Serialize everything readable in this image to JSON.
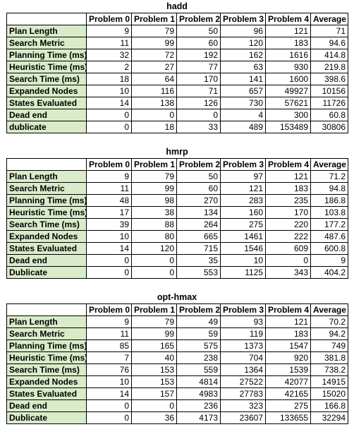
{
  "tables": [
    {
      "title": "hadd",
      "columns": [
        "Problem 0",
        "Problem 1",
        "Problem 2",
        "Problem 3",
        "Problem 4",
        "Average"
      ],
      "rows": [
        {
          "label": "Plan Length",
          "values": [
            "9",
            "79",
            "50",
            "96",
            "121",
            "71"
          ]
        },
        {
          "label": "Search Metric",
          "values": [
            "11",
            "99",
            "60",
            "120",
            "183",
            "94.6"
          ]
        },
        {
          "label": "Planning Time (ms)",
          "values": [
            "32",
            "72",
            "192",
            "162",
            "1616",
            "414.8"
          ]
        },
        {
          "label": "Heuristic Time (ms)",
          "values": [
            "2",
            "27",
            "77",
            "63",
            "930",
            "219.8"
          ]
        },
        {
          "label": "Search Time (ms)",
          "values": [
            "18",
            "64",
            "170",
            "141",
            "1600",
            "398.6"
          ]
        },
        {
          "label": "Expanded Nodes",
          "values": [
            "10",
            "116",
            "71",
            "657",
            "49927",
            "10156"
          ]
        },
        {
          "label": "States Evaluated",
          "values": [
            "14",
            "138",
            "126",
            "730",
            "57621",
            "11726"
          ]
        },
        {
          "label": "Dead end",
          "values": [
            "0",
            "0",
            "0",
            "4",
            "300",
            "60.8"
          ]
        },
        {
          "label": "dublicate",
          "values": [
            "0",
            "18",
            "33",
            "489",
            "153489",
            "30806"
          ]
        }
      ]
    },
    {
      "title": "hmrp",
      "columns": [
        "Problem 0",
        "Problem 1",
        "Problem 2",
        "Problem 3",
        "Problem 4",
        "Average"
      ],
      "rows": [
        {
          "label": "Plan Length",
          "values": [
            "9",
            "79",
            "50",
            "97",
            "121",
            "71.2"
          ]
        },
        {
          "label": "Search Metric",
          "values": [
            "11",
            "99",
            "60",
            "121",
            "183",
            "94.8"
          ]
        },
        {
          "label": "Planning Time (ms)",
          "values": [
            "48",
            "98",
            "270",
            "283",
            "235",
            "186.8"
          ]
        },
        {
          "label": "Heuristic Time (ms)",
          "values": [
            "17",
            "38",
            "134",
            "160",
            "170",
            "103.8"
          ]
        },
        {
          "label": "Search Time (ms)",
          "values": [
            "39",
            "88",
            "264",
            "275",
            "220",
            "177.2"
          ]
        },
        {
          "label": "Expanded Nodes",
          "values": [
            "10",
            "80",
            "665",
            "1461",
            "222",
            "487.6"
          ]
        },
        {
          "label": "States Evaluated",
          "values": [
            "14",
            "120",
            "715",
            "1546",
            "609",
            "600.8"
          ]
        },
        {
          "label": "Dead end",
          "values": [
            "0",
            "0",
            "35",
            "10",
            "0",
            "9"
          ]
        },
        {
          "label": "Dublicate",
          "values": [
            "0",
            "0",
            "553",
            "1125",
            "343",
            "404.2"
          ]
        }
      ]
    },
    {
      "title": "opt-hmax",
      "columns": [
        "Problem 0",
        "Problem 1",
        "Problem 2",
        "Problem 3",
        "Problem 4",
        "Average"
      ],
      "rows": [
        {
          "label": "Plan Length",
          "values": [
            "9",
            "79",
            "49",
            "93",
            "121",
            "70.2"
          ]
        },
        {
          "label": "Search Metric",
          "values": [
            "11",
            "99",
            "59",
            "119",
            "183",
            "94.2"
          ]
        },
        {
          "label": "Planning Time (ms)",
          "values": [
            "85",
            "165",
            "575",
            "1373",
            "1547",
            "749"
          ]
        },
        {
          "label": "Heuristic Time (ms)",
          "values": [
            "7",
            "40",
            "238",
            "704",
            "920",
            "381.8"
          ]
        },
        {
          "label": "Search Time (ms)",
          "values": [
            "76",
            "153",
            "559",
            "1364",
            "1539",
            "738.2"
          ]
        },
        {
          "label": "Expanded Nodes",
          "values": [
            "10",
            "153",
            "4814",
            "27522",
            "42077",
            "14915"
          ]
        },
        {
          "label": "States Evaluated",
          "values": [
            "14",
            "157",
            "4983",
            "27783",
            "42165",
            "15020"
          ]
        },
        {
          "label": "Dead end",
          "values": [
            "0",
            "0",
            "236",
            "323",
            "275",
            "166.8"
          ]
        },
        {
          "label": "Dublicate",
          "values": [
            "0",
            "36",
            "4173",
            "23607",
            "133655",
            "32294"
          ]
        }
      ]
    }
  ]
}
